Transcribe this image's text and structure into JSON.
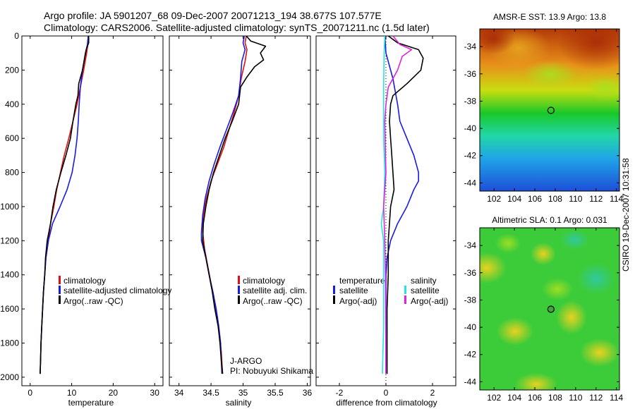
{
  "header": {
    "line1": "Argo profile: JA 5901207_68 09-Dec-2007 20071213_194 38.677S 107.577E",
    "line2": "Climatology: CARS2006. Satellite-adjusted climatology: synTS_20071211.nc (1.5d later)"
  },
  "colors": {
    "climatology": "#dd1111",
    "satellite": "#1a1ae6",
    "argo": "#000000",
    "satellite_salinity": "#22e6e6",
    "argo_salinity": "#e022e0"
  },
  "chart_data": [
    {
      "type": "line",
      "id": "temperature",
      "xlabel": "temperature",
      "ylabel": "",
      "xlim": [
        -2,
        32
      ],
      "ylim": [
        2050,
        0
      ],
      "xticks": [
        "0",
        "10",
        "20",
        "30"
      ],
      "yticks": [
        "0",
        "200",
        "400",
        "600",
        "800",
        "1000",
        "1200",
        "1400",
        "1600",
        "1800",
        "2000"
      ],
      "legend": [
        "climatology",
        "satellite-adjusted climatology",
        "Argo(..raw -QC)"
      ],
      "series": [
        {
          "name": "climatology",
          "color": "#dd1111",
          "points": [
            [
              14,
              0
            ],
            [
              13.9,
              50
            ],
            [
              13.6,
              100
            ],
            [
              12.9,
              200
            ],
            [
              12.1,
              300
            ],
            [
              11.3,
              400
            ],
            [
              10.3,
              500
            ],
            [
              9.3,
              600
            ],
            [
              8.2,
              700
            ],
            [
              7.3,
              800
            ],
            [
              6.4,
              900
            ],
            [
              5.7,
              1000
            ],
            [
              4.9,
              1100
            ],
            [
              4.4,
              1200
            ],
            [
              3.8,
              1300
            ],
            [
              3.5,
              1400
            ],
            [
              3.2,
              1500
            ],
            [
              3.0,
              1600
            ],
            [
              2.8,
              1700
            ],
            [
              2.6,
              1800
            ],
            [
              2.5,
              1900
            ],
            [
              2.4,
              1980
            ]
          ]
        },
        {
          "name": "satellite-adjusted climatology",
          "color": "#1a1ae6",
          "points": [
            [
              14,
              0
            ],
            [
              13.8,
              50
            ],
            [
              13.3,
              100
            ],
            [
              12.6,
              200
            ],
            [
              12.1,
              300
            ],
            [
              11.8,
              400
            ],
            [
              11.6,
              500
            ],
            [
              11.3,
              600
            ],
            [
              10.8,
              700
            ],
            [
              10.1,
              800
            ],
            [
              8.9,
              900
            ],
            [
              7.2,
              1000
            ],
            [
              5.4,
              1100
            ],
            [
              4.4,
              1200
            ],
            [
              3.8,
              1300
            ],
            [
              3.5,
              1400
            ],
            [
              3.2,
              1500
            ],
            [
              3.0,
              1600
            ],
            [
              2.8,
              1700
            ],
            [
              2.6,
              1800
            ],
            [
              2.5,
              1900
            ],
            [
              2.4,
              1980
            ]
          ]
        },
        {
          "name": "Argo(..raw -QC)",
          "color": "#000000",
          "points": [
            [
              14.1,
              0
            ],
            [
              14.1,
              40
            ],
            [
              13.5,
              80
            ],
            [
              13.2,
              120
            ],
            [
              12.6,
              200
            ],
            [
              11.7,
              280
            ],
            [
              11.5,
              350
            ],
            [
              11.0,
              400
            ],
            [
              10.3,
              500
            ],
            [
              9.7,
              600
            ],
            [
              8.6,
              700
            ],
            [
              7.4,
              800
            ],
            [
              6.3,
              900
            ],
            [
              5.5,
              1000
            ],
            [
              4.9,
              1100
            ],
            [
              4.1,
              1200
            ],
            [
              3.7,
              1300
            ],
            [
              3.5,
              1400
            ],
            [
              3.2,
              1500
            ],
            [
              3.0,
              1600
            ],
            [
              2.8,
              1700
            ],
            [
              2.6,
              1800
            ],
            [
              2.5,
              1900
            ],
            [
              2.4,
              1980
            ]
          ]
        }
      ]
    },
    {
      "type": "line",
      "id": "salinity",
      "xlabel": "salinity",
      "ylabel": "",
      "xlim": [
        33.85,
        36.05
      ],
      "ylim": [
        2050,
        0
      ],
      "xticks": [
        "34",
        "34.5",
        "35",
        "35.5",
        "36"
      ],
      "yticks": [],
      "legend": [
        "climatology",
        "satellite adj. clim.",
        "Argo(..raw -QC)"
      ],
      "annotation": [
        "J-ARGO",
        "PI: Nobuyuki Shikama"
      ],
      "series": [
        {
          "name": "climatology",
          "color": "#dd1111",
          "points": [
            [
              35.05,
              0
            ],
            [
              35.03,
              40
            ],
            [
              35.06,
              80
            ],
            [
              35.03,
              150
            ],
            [
              34.97,
              250
            ],
            [
              34.93,
              350
            ],
            [
              34.86,
              450
            ],
            [
              34.78,
              550
            ],
            [
              34.7,
              650
            ],
            [
              34.6,
              750
            ],
            [
              34.5,
              850
            ],
            [
              34.43,
              950
            ],
            [
              34.38,
              1050
            ],
            [
              34.37,
              1150
            ],
            [
              34.4,
              1250
            ],
            [
              34.45,
              1350
            ],
            [
              34.5,
              1450
            ],
            [
              34.55,
              1550
            ],
            [
              34.6,
              1650
            ],
            [
              34.63,
              1750
            ],
            [
              34.66,
              1850
            ],
            [
              34.68,
              1980
            ]
          ]
        },
        {
          "name": "satellite adj. clim.",
          "color": "#1a1ae6",
          "points": [
            [
              35.02,
              0
            ],
            [
              35.0,
              40
            ],
            [
              35.03,
              80
            ],
            [
              34.98,
              150
            ],
            [
              34.96,
              250
            ],
            [
              34.93,
              350
            ],
            [
              34.84,
              450
            ],
            [
              34.74,
              550
            ],
            [
              34.64,
              650
            ],
            [
              34.55,
              750
            ],
            [
              34.47,
              850
            ],
            [
              34.41,
              950
            ],
            [
              34.37,
              1050
            ],
            [
              34.35,
              1150
            ],
            [
              34.35,
              1200
            ],
            [
              34.42,
              1300
            ],
            [
              34.47,
              1400
            ],
            [
              34.53,
              1500
            ],
            [
              34.58,
              1600
            ],
            [
              34.62,
              1700
            ],
            [
              34.65,
              1800
            ],
            [
              34.66,
              1900
            ],
            [
              34.67,
              1980
            ]
          ]
        },
        {
          "name": "Argo(..raw -QC)",
          "color": "#000000",
          "points": [
            [
              35.05,
              0
            ],
            [
              35.12,
              30
            ],
            [
              35.35,
              60
            ],
            [
              35.27,
              100
            ],
            [
              35.32,
              140
            ],
            [
              35.18,
              180
            ],
            [
              35.06,
              240
            ],
            [
              34.96,
              300
            ],
            [
              34.93,
              400
            ],
            [
              34.83,
              500
            ],
            [
              34.72,
              600
            ],
            [
              34.63,
              700
            ],
            [
              34.54,
              800
            ],
            [
              34.47,
              900
            ],
            [
              34.42,
              1000
            ],
            [
              34.38,
              1100
            ],
            [
              34.37,
              1200
            ],
            [
              34.42,
              1300
            ],
            [
              34.47,
              1400
            ],
            [
              34.52,
              1500
            ],
            [
              34.56,
              1600
            ],
            [
              34.61,
              1700
            ],
            [
              34.64,
              1800
            ],
            [
              34.66,
              1900
            ],
            [
              34.68,
              1980
            ]
          ]
        }
      ]
    },
    {
      "type": "line",
      "id": "difference",
      "xlabel": "difference from climatology",
      "ylabel": "",
      "xlim": [
        -3,
        3
      ],
      "ylim": [
        2050,
        0
      ],
      "xticks": [
        "-2",
        "0",
        "2"
      ],
      "yticks": [],
      "legend_titles": [
        "temperature",
        "salinity"
      ],
      "legend": [
        "satellite",
        "Argo(-adj)",
        "satellite",
        "Argo(-adj)"
      ],
      "series": [
        {
          "name": "temperature satellite",
          "color": "#1a1ae6",
          "points": [
            [
              -0.05,
              0
            ],
            [
              0.0,
              100
            ],
            [
              0.3,
              250
            ],
            [
              0.5,
              400
            ],
            [
              0.6,
              500
            ],
            [
              0.9,
              600
            ],
            [
              1.2,
              700
            ],
            [
              1.4,
              800
            ],
            [
              1.4,
              850
            ],
            [
              1.2,
              900
            ],
            [
              0.9,
              1000
            ],
            [
              0.5,
              1100
            ],
            [
              0.2,
              1200
            ],
            [
              0.05,
              1300
            ],
            [
              0,
              1400
            ],
            [
              0,
              1980
            ]
          ]
        },
        {
          "name": "temperature Argo(-adj)",
          "color": "#000000",
          "points": [
            [
              0.1,
              0
            ],
            [
              0.5,
              40
            ],
            [
              1.4,
              80
            ],
            [
              1.6,
              130
            ],
            [
              1.5,
              200
            ],
            [
              0.9,
              280
            ],
            [
              0.3,
              350
            ],
            [
              0.2,
              400
            ],
            [
              0.15,
              500
            ],
            [
              0.2,
              600
            ],
            [
              0.25,
              700
            ],
            [
              0.3,
              800
            ],
            [
              0.35,
              900
            ],
            [
              0.2,
              1000
            ],
            [
              0.15,
              1100
            ],
            [
              0.1,
              1200
            ],
            [
              0.1,
              1400
            ],
            [
              0.05,
              1600
            ],
            [
              0.05,
              1980
            ]
          ]
        },
        {
          "name": "salinity satellite",
          "color": "#22e6e6",
          "points": [
            [
              -0.05,
              0
            ],
            [
              -0.08,
              100
            ],
            [
              -0.1,
              300
            ],
            [
              -0.1,
              600
            ],
            [
              -0.05,
              800
            ],
            [
              -0.1,
              1000
            ],
            [
              -0.2,
              1100
            ],
            [
              -0.1,
              1200
            ],
            [
              -0.1,
              1400
            ],
            [
              -0.1,
              1700
            ],
            [
              -0.15,
              1980
            ]
          ]
        },
        {
          "name": "salinity Argo(-adj)",
          "color": "#e022e0",
          "points": [
            [
              0.3,
              0
            ],
            [
              0.6,
              50
            ],
            [
              1.1,
              80
            ],
            [
              0.7,
              120
            ],
            [
              0.5,
              200
            ],
            [
              0.1,
              300
            ],
            [
              0.0,
              400
            ],
            [
              -0.05,
              500
            ],
            [
              -0.02,
              700
            ],
            [
              0.0,
              800
            ],
            [
              -0.05,
              900
            ],
            [
              -0.1,
              1000
            ],
            [
              -0.05,
              1200
            ],
            [
              -0.02,
              1400
            ],
            [
              0.0,
              1980
            ]
          ]
        }
      ]
    },
    {
      "type": "heatmap",
      "id": "sst",
      "title": "AMSR-E SST: 13.9 Argo: 13.8",
      "xlim": [
        100.6,
        114.3
      ],
      "ylim": [
        -44.6,
        -32.7
      ],
      "xticks": [
        "102",
        "104",
        "106",
        "108",
        "110",
        "112",
        "114"
      ],
      "yticks": [
        "-34",
        "-36",
        "-38",
        "-40",
        "-42",
        "-44"
      ],
      "marker": {
        "lon": 107.577,
        "lat": -38.677
      }
    },
    {
      "type": "heatmap",
      "id": "sla",
      "title": "Altimetric SLA: 0.1 Argo: 0.031",
      "xlim": [
        100.6,
        114.3
      ],
      "ylim": [
        -44.6,
        -32.7
      ],
      "xticks": [
        "102",
        "104",
        "106",
        "108",
        "110",
        "112",
        "114"
      ],
      "yticks": [
        "-34",
        "-36",
        "-38",
        "-40",
        "-42",
        "-44"
      ],
      "marker": {
        "lon": 107.577,
        "lat": -38.677
      }
    }
  ],
  "stamp": "CSIRO 19-Dec-2007 10:31:58"
}
